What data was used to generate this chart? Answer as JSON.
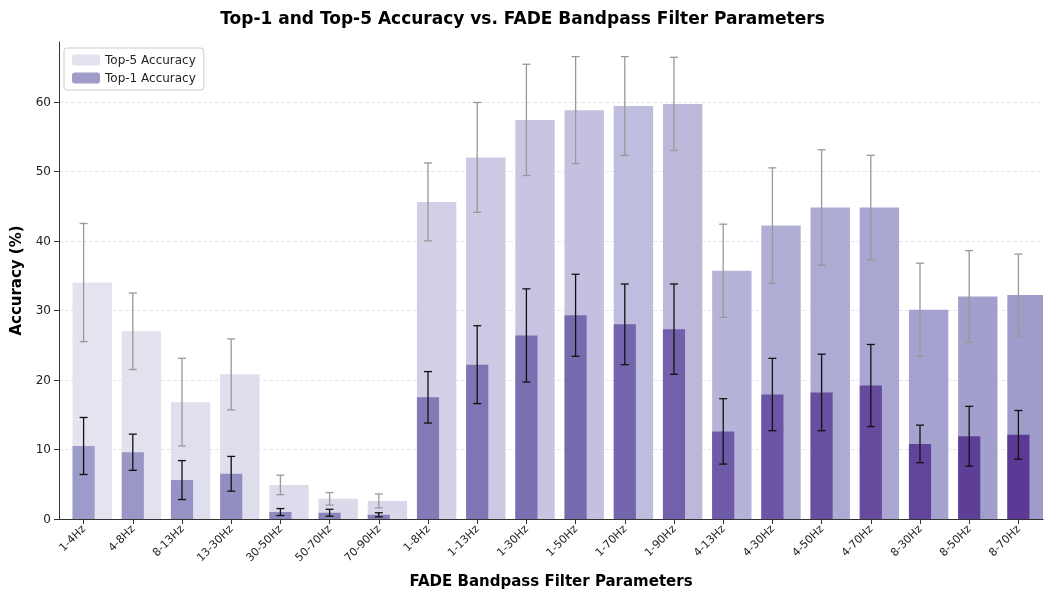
{
  "chart_data": {
    "type": "bar",
    "title": "Top-1 and Top-5 Accuracy vs. FADE Bandpass Filter Parameters",
    "xlabel": "FADE Bandpass Filter Parameters",
    "ylabel": "Accuracy (%)",
    "categories": [
      "1-4Hz",
      "4-8Hz",
      "8-13Hz",
      "13-30Hz",
      "30-50Hz",
      "50-70Hz",
      "70-90Hz",
      "1-8Hz",
      "1-13Hz",
      "1-30Hz",
      "1-50Hz",
      "1-70Hz",
      "1-90Hz",
      "4-13Hz",
      "4-30Hz",
      "4-50Hz",
      "4-70Hz",
      "8-30Hz",
      "8-50Hz",
      "8-70Hz"
    ],
    "series": [
      {
        "name": "Top-5 Accuracy",
        "color": "#e3e2ef",
        "values": [
          34.0,
          27.0,
          16.8,
          20.8,
          4.9,
          2.9,
          2.6,
          45.6,
          52.0,
          57.4,
          58.8,
          59.4,
          59.7,
          35.7,
          42.2,
          44.8,
          44.8,
          30.1,
          32.0,
          32.2
        ],
        "errors": [
          8.5,
          5.5,
          6.3,
          5.1,
          1.4,
          0.9,
          1.0,
          5.6,
          7.9,
          8.0,
          7.7,
          7.1,
          6.7,
          6.7,
          8.3,
          8.3,
          7.5,
          6.7,
          6.6,
          5.9
        ],
        "colors": [
          "#e4e3ef",
          "#e2e1ee",
          "#e0dfed",
          "#dfdeec",
          "#dddcec",
          "#dbdaeb",
          "#d9d8ea",
          "#d2d0e6",
          "#cbc9e3",
          "#c7c5e1",
          "#c3c1df",
          "#bfbddd",
          "#bbb8da",
          "#b6b3d8",
          "#b1aed5",
          "#adaad3",
          "#a9a6d1",
          "#a5a2cf",
          "#a29fcd",
          "#9f9ccc"
        ]
      },
      {
        "name": "Top-1 Accuracy",
        "color": "#a09cc9",
        "values": [
          10.5,
          9.6,
          5.6,
          6.5,
          1.0,
          0.9,
          0.6,
          17.5,
          22.2,
          26.4,
          29.3,
          28.0,
          27.3,
          12.6,
          17.9,
          18.2,
          19.2,
          10.8,
          11.9,
          12.1
        ],
        "errors": [
          4.1,
          2.6,
          2.8,
          2.5,
          0.5,
          0.5,
          0.3,
          3.7,
          5.6,
          6.7,
          5.9,
          5.8,
          6.5,
          4.7,
          5.2,
          5.5,
          5.9,
          2.7,
          4.3,
          3.5
        ],
        "colors": [
          "#9d9bc9",
          "#9a97c7",
          "#9692c4",
          "#928ec2",
          "#8e89bf",
          "#8a85bd",
          "#8680bb",
          "#837ab8",
          "#7f75b5",
          "#7b6fb2",
          "#786aaf",
          "#7565ad",
          "#7260aa",
          "#6f5aa7",
          "#6b55a4",
          "#6850a1",
          "#654a9e",
          "#61459b",
          "#5e3f98",
          "#5b3994"
        ]
      }
    ],
    "ylim": [
      0,
      68.6
    ],
    "yticks": [
      0,
      10,
      20,
      30,
      40,
      50,
      60
    ],
    "grid": "y",
    "legend": "top left"
  }
}
